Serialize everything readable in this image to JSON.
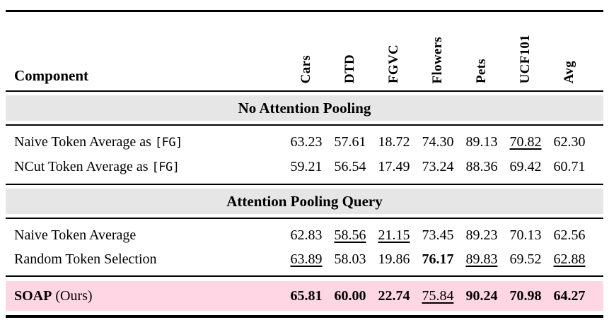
{
  "corner_header": "Component",
  "columns": [
    "Cars",
    "DTD",
    "FGVC",
    "Flowers",
    "Pets",
    "UCF101",
    "Avg"
  ],
  "sections": [
    {
      "header": "No Attention Pooling",
      "rows": [
        {
          "label": "Naive Token Average as",
          "label_code": "[FG]",
          "values": [
            "63.23",
            "57.61",
            "18.72",
            "74.30",
            "89.13",
            "70.82",
            "62.30"
          ],
          "styles": [
            "",
            "",
            "",
            "",
            "",
            "u",
            ""
          ]
        },
        {
          "label": "NCut Token Average as",
          "label_code": "[FG]",
          "values": [
            "59.21",
            "56.54",
            "17.49",
            "73.24",
            "88.36",
            "69.42",
            "60.71"
          ],
          "styles": [
            "",
            "",
            "",
            "",
            "",
            "",
            ""
          ]
        }
      ]
    },
    {
      "header": "Attention Pooling Query",
      "rows": [
        {
          "label": "Naive Token Average",
          "label_code": "",
          "values": [
            "62.83",
            "58.56",
            "21.15",
            "73.45",
            "89.23",
            "70.13",
            "62.56"
          ],
          "styles": [
            "",
            "u",
            "u",
            "",
            "",
            "",
            ""
          ]
        },
        {
          "label": "Random Token Selection",
          "label_code": "",
          "values": [
            "63.89",
            "58.03",
            "19.86",
            "76.17",
            "89.83",
            "69.52",
            "62.88"
          ],
          "styles": [
            "u",
            "",
            "",
            "b",
            "u",
            "",
            "u"
          ]
        }
      ]
    }
  ],
  "highlight_row": {
    "label_bold": "SOAP",
    "label_rest": " (Ours)",
    "values": [
      "65.81",
      "60.00",
      "22.74",
      "75.84",
      "90.24",
      "70.98",
      "64.27"
    ],
    "styles": [
      "b",
      "b",
      "b",
      "u",
      "b",
      "b",
      "b"
    ]
  },
  "colors": {
    "section_header_bg": "#e6e6e6",
    "highlight_bg": "#ffd6e3",
    "rule": "#000000",
    "text": "#000000"
  }
}
